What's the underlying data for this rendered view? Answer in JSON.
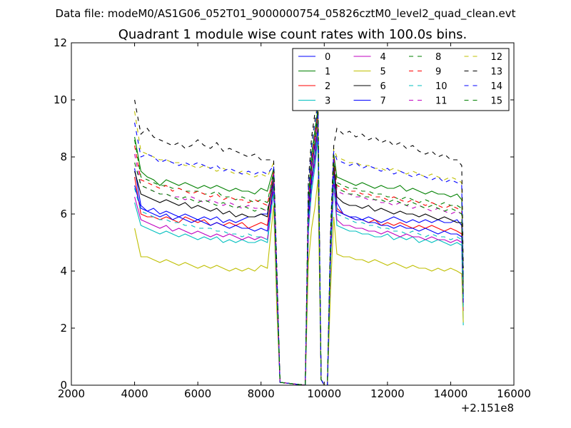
{
  "figure": {
    "suptitle": "Data file: modeM0/AS1G06_052T01_9000000754_05826cztM0_level2_quad_clean.evt",
    "title": "Quadrant 1 module wise count rates with 100.0s bins.",
    "x_offset_label": "+2.151e8"
  },
  "chart_data": {
    "type": "line",
    "title": "Quadrant 1 module wise count rates with 100.0s bins.",
    "xlabel": "",
    "ylabel": "",
    "xlim": [
      2000,
      16000
    ],
    "ylim": [
      0,
      12
    ],
    "x_ticks": [
      2000,
      4000,
      6000,
      8000,
      10000,
      12000,
      14000,
      16000
    ],
    "y_ticks": [
      0,
      2,
      4,
      6,
      8,
      10,
      12
    ],
    "x_tick_labels": [
      "2000",
      "4000",
      "6000",
      "8000",
      "10000",
      "12000",
      "14000",
      "16000"
    ],
    "y_tick_labels": [
      "0",
      "2",
      "4",
      "6",
      "8",
      "10",
      "12"
    ],
    "x_offset": "+2.151e8",
    "grid": false,
    "legend_placement": "top-right",
    "legend_columns": 4,
    "x": [
      4000,
      4200,
      4400,
      4600,
      4800,
      5000,
      5200,
      5400,
      5600,
      5800,
      6000,
      6200,
      6400,
      6600,
      6800,
      7000,
      7200,
      7400,
      7600,
      7800,
      8000,
      8200,
      8400,
      8500,
      8600,
      9400,
      9500,
      9600,
      9700,
      9800,
      9900,
      10000,
      10100,
      10200,
      10300,
      10400,
      10600,
      10800,
      11000,
      11200,
      11400,
      11600,
      11800,
      12000,
      12200,
      12400,
      12600,
      12800,
      13000,
      13200,
      13400,
      13600,
      13800,
      14000,
      14200,
      14350,
      14400
    ],
    "series": [
      {
        "name": "0",
        "color": "#0000ff",
        "dash": "solid",
        "values": [
          7.6,
          6.3,
          6.1,
          6.2,
          6.0,
          6.1,
          6.0,
          5.9,
          6.0,
          5.9,
          5.8,
          5.9,
          5.8,
          5.9,
          5.7,
          5.8,
          5.7,
          5.8,
          5.9,
          5.9,
          6.0,
          6.0,
          7.2,
          3.5,
          0.1,
          0.0,
          6.0,
          7.6,
          8.4,
          9.6,
          0.2,
          0.0,
          0.0,
          4.8,
          7.9,
          6.4,
          6.0,
          5.9,
          5.9,
          5.8,
          5.9,
          5.8,
          5.7,
          5.8,
          5.9,
          5.8,
          5.7,
          5.8,
          5.7,
          5.8,
          5.7,
          5.8,
          5.7,
          5.7,
          5.8,
          5.6,
          3.0
        ]
      },
      {
        "name": "1",
        "color": "#008000",
        "dash": "solid",
        "values": [
          8.7,
          7.5,
          7.3,
          7.2,
          7.0,
          7.2,
          7.1,
          7.0,
          7.1,
          7.0,
          6.9,
          7.0,
          6.9,
          7.0,
          6.9,
          6.8,
          6.9,
          6.8,
          6.8,
          6.7,
          6.9,
          6.8,
          7.6,
          3.8,
          0.1,
          0.0,
          6.6,
          8.1,
          8.9,
          9.7,
          0.2,
          0.0,
          0.0,
          5.0,
          8.1,
          7.3,
          7.2,
          7.1,
          7.0,
          7.1,
          7.0,
          6.9,
          7.0,
          6.9,
          6.9,
          7.0,
          6.8,
          6.9,
          6.8,
          6.7,
          6.8,
          6.7,
          6.7,
          6.6,
          6.7,
          6.5,
          3.6
        ]
      },
      {
        "name": "2",
        "color": "#ff0000",
        "dash": "solid",
        "values": [
          7.3,
          6.0,
          5.9,
          5.9,
          5.8,
          5.9,
          5.8,
          5.7,
          5.9,
          5.8,
          5.7,
          5.8,
          5.6,
          5.7,
          5.6,
          5.7,
          5.6,
          5.7,
          5.5,
          5.6,
          5.7,
          5.6,
          7.1,
          3.4,
          0.1,
          0.0,
          5.9,
          7.3,
          8.1,
          9.1,
          0.2,
          0.0,
          0.0,
          4.6,
          7.6,
          6.2,
          6.0,
          5.9,
          5.8,
          5.8,
          5.7,
          5.8,
          5.6,
          5.7,
          5.6,
          5.7,
          5.6,
          5.5,
          5.6,
          5.5,
          5.6,
          5.5,
          5.4,
          5.5,
          5.4,
          5.3,
          2.9
        ]
      },
      {
        "name": "3",
        "color": "#00bfbf",
        "dash": "solid",
        "values": [
          6.4,
          5.6,
          5.5,
          5.4,
          5.3,
          5.4,
          5.3,
          5.2,
          5.3,
          5.2,
          5.1,
          5.2,
          5.1,
          5.2,
          5.0,
          5.1,
          5.0,
          5.1,
          5.0,
          5.0,
          5.1,
          5.0,
          6.8,
          3.1,
          0.1,
          0.0,
          5.4,
          6.8,
          7.6,
          8.6,
          0.2,
          0.0,
          0.0,
          4.2,
          7.1,
          5.6,
          5.5,
          5.4,
          5.4,
          5.3,
          5.3,
          5.2,
          5.2,
          5.3,
          5.1,
          5.2,
          5.1,
          5.2,
          5.0,
          5.1,
          5.0,
          5.1,
          5.0,
          4.9,
          5.0,
          4.9,
          2.1
        ]
      },
      {
        "name": "4",
        "color": "#bf00bf",
        "dash": "solid",
        "values": [
          6.6,
          5.8,
          5.7,
          5.6,
          5.5,
          5.6,
          5.4,
          5.5,
          5.4,
          5.3,
          5.4,
          5.3,
          5.2,
          5.3,
          5.2,
          5.3,
          5.2,
          5.1,
          5.2,
          5.1,
          5.2,
          5.1,
          6.9,
          3.2,
          0.1,
          0.0,
          5.5,
          7.0,
          7.8,
          8.8,
          0.2,
          0.0,
          0.0,
          4.3,
          7.2,
          5.8,
          5.6,
          5.6,
          5.5,
          5.5,
          5.4,
          5.4,
          5.3,
          5.4,
          5.3,
          5.2,
          5.3,
          5.2,
          5.2,
          5.1,
          5.2,
          5.1,
          5.1,
          5.0,
          5.1,
          5.0,
          2.6
        ]
      },
      {
        "name": "5",
        "color": "#bfbf00",
        "dash": "solid",
        "values": [
          5.5,
          4.5,
          4.5,
          4.4,
          4.3,
          4.4,
          4.3,
          4.2,
          4.3,
          4.2,
          4.1,
          4.2,
          4.1,
          4.2,
          4.1,
          4.0,
          4.1,
          4.0,
          4.1,
          4.0,
          4.2,
          4.1,
          6.3,
          2.6,
          0.1,
          0.0,
          4.3,
          5.5,
          6.2,
          7.2,
          0.2,
          0.0,
          0.0,
          3.3,
          5.9,
          4.6,
          4.5,
          4.5,
          4.4,
          4.4,
          4.3,
          4.4,
          4.3,
          4.2,
          4.3,
          4.2,
          4.1,
          4.2,
          4.1,
          4.1,
          4.0,
          4.1,
          4.0,
          4.1,
          4.0,
          3.9,
          2.2
        ]
      },
      {
        "name": "6",
        "color": "#000000",
        "dash": "solid",
        "values": [
          7.5,
          6.7,
          6.6,
          6.5,
          6.4,
          6.5,
          6.4,
          6.3,
          6.4,
          6.2,
          6.3,
          6.2,
          6.1,
          6.2,
          6.0,
          6.1,
          5.9,
          6.0,
          5.9,
          5.9,
          6.0,
          5.9,
          7.4,
          3.6,
          0.1,
          0.0,
          6.2,
          7.7,
          8.5,
          9.4,
          0.2,
          0.0,
          0.0,
          4.9,
          7.8,
          6.6,
          6.4,
          6.3,
          6.3,
          6.2,
          6.3,
          6.1,
          6.2,
          6.1,
          6.0,
          6.1,
          6.0,
          6.0,
          5.9,
          6.0,
          5.9,
          5.8,
          5.9,
          5.8,
          5.7,
          5.7,
          3.1
        ]
      },
      {
        "name": "7",
        "color": "#0000ff",
        "dash": "solid",
        "values": [
          7.0,
          6.2,
          6.1,
          6.0,
          5.9,
          6.0,
          5.8,
          5.9,
          5.8,
          5.7,
          5.8,
          5.7,
          5.6,
          5.7,
          5.6,
          5.5,
          5.6,
          5.5,
          5.5,
          5.4,
          5.5,
          5.4,
          7.0,
          3.3,
          0.1,
          0.0,
          5.8,
          7.2,
          8.0,
          9.0,
          0.2,
          0.0,
          0.0,
          4.5,
          7.4,
          6.1,
          6.0,
          5.9,
          5.8,
          5.8,
          5.7,
          5.7,
          5.6,
          5.6,
          5.5,
          5.6,
          5.5,
          5.5,
          5.4,
          5.5,
          5.4,
          5.3,
          5.4,
          5.3,
          5.3,
          5.2,
          2.8
        ]
      },
      {
        "name": "8",
        "color": "#008000",
        "dash": "dashed",
        "values": [
          8.6,
          7.3,
          7.2,
          7.1,
          7.0,
          7.0,
          6.9,
          6.9,
          6.8,
          6.8,
          6.8,
          6.7,
          6.7,
          6.8,
          6.6,
          6.6,
          6.5,
          6.6,
          6.5,
          6.4,
          6.5,
          6.4,
          7.5,
          3.7,
          0.1,
          0.0,
          6.5,
          8.0,
          8.8,
          9.6,
          0.2,
          0.0,
          0.0,
          5.0,
          8.0,
          7.1,
          7.0,
          6.9,
          6.9,
          6.8,
          6.8,
          6.7,
          6.7,
          6.6,
          6.6,
          6.5,
          6.6,
          6.5,
          6.4,
          6.5,
          6.4,
          6.3,
          6.4,
          6.3,
          6.3,
          6.2,
          3.4
        ]
      },
      {
        "name": "9",
        "color": "#ff0000",
        "dash": "dashed",
        "values": [
          8.4,
          7.2,
          7.1,
          7.0,
          6.9,
          7.0,
          6.8,
          6.9,
          6.8,
          6.7,
          6.8,
          6.7,
          6.6,
          6.7,
          6.5,
          6.6,
          6.5,
          6.5,
          6.4,
          6.5,
          6.4,
          6.3,
          7.5,
          3.7,
          0.1,
          0.0,
          6.4,
          7.9,
          8.7,
          9.5,
          0.2,
          0.0,
          0.0,
          4.9,
          8.0,
          7.0,
          6.9,
          6.8,
          6.8,
          6.7,
          6.7,
          6.6,
          6.6,
          6.5,
          6.6,
          6.5,
          6.4,
          6.5,
          6.4,
          6.3,
          6.4,
          6.3,
          6.2,
          6.3,
          6.2,
          6.1,
          3.3
        ]
      },
      {
        "name": "10",
        "color": "#00bfbf",
        "dash": "dashed",
        "values": [
          6.9,
          6.1,
          6.0,
          5.9,
          5.8,
          5.8,
          5.7,
          5.7,
          5.6,
          5.6,
          5.5,
          5.5,
          5.5,
          5.4,
          5.4,
          5.3,
          5.3,
          5.2,
          5.3,
          5.2,
          5.2,
          5.1,
          6.9,
          3.2,
          0.1,
          0.0,
          5.6,
          7.0,
          7.9,
          8.8,
          0.2,
          0.0,
          0.0,
          4.4,
          7.3,
          6.0,
          5.9,
          5.8,
          5.7,
          5.7,
          5.6,
          5.6,
          5.5,
          5.5,
          5.4,
          5.4,
          5.3,
          5.4,
          5.3,
          5.2,
          5.3,
          5.2,
          5.2,
          5.1,
          5.2,
          5.1,
          2.7
        ]
      },
      {
        "name": "11",
        "color": "#bf00bf",
        "dash": "dashed",
        "values": [
          8.1,
          7.0,
          6.9,
          6.8,
          6.7,
          6.7,
          6.6,
          6.6,
          6.5,
          6.6,
          6.5,
          6.4,
          6.5,
          6.4,
          6.3,
          6.4,
          6.3,
          6.2,
          6.3,
          6.2,
          6.2,
          6.1,
          7.4,
          3.6,
          0.1,
          0.0,
          6.3,
          7.8,
          8.6,
          9.4,
          0.2,
          0.0,
          0.0,
          4.8,
          7.9,
          6.8,
          6.7,
          6.7,
          6.6,
          6.6,
          6.5,
          6.5,
          6.4,
          6.4,
          6.3,
          6.4,
          6.3,
          6.2,
          6.3,
          6.2,
          6.1,
          6.2,
          6.1,
          6.0,
          6.1,
          6.0,
          3.2
        ]
      },
      {
        "name": "12",
        "color": "#bfbf00",
        "dash": "dashed",
        "values": [
          9.6,
          8.2,
          8.1,
          8.0,
          7.9,
          7.9,
          7.8,
          7.8,
          7.7,
          7.7,
          7.6,
          7.7,
          7.6,
          7.5,
          7.6,
          7.5,
          7.4,
          7.5,
          7.4,
          7.3,
          7.4,
          7.3,
          7.8,
          4.0,
          0.1,
          0.0,
          7.0,
          8.5,
          9.3,
          9.9,
          0.2,
          0.0,
          0.0,
          5.3,
          8.3,
          8.0,
          7.9,
          7.8,
          7.8,
          7.7,
          7.7,
          7.6,
          7.6,
          7.5,
          7.6,
          7.5,
          7.4,
          7.5,
          7.4,
          7.3,
          7.4,
          7.3,
          7.2,
          7.3,
          7.2,
          7.1,
          3.9
        ]
      },
      {
        "name": "13",
        "color": "#000000",
        "dash": "dashed",
        "values": [
          10.0,
          8.8,
          9.0,
          8.7,
          8.6,
          8.5,
          8.4,
          8.5,
          8.3,
          8.4,
          8.6,
          8.4,
          8.3,
          8.5,
          8.2,
          8.3,
          8.2,
          8.1,
          8.0,
          8.1,
          7.9,
          7.9,
          7.9,
          4.1,
          0.1,
          0.0,
          7.2,
          8.7,
          9.5,
          10.2,
          0.2,
          0.0,
          0.0,
          5.4,
          8.4,
          9.0,
          8.8,
          8.9,
          8.7,
          8.8,
          8.6,
          8.7,
          8.5,
          8.6,
          8.4,
          8.5,
          8.3,
          8.4,
          8.2,
          8.1,
          8.2,
          8.0,
          8.1,
          7.9,
          7.9,
          7.7,
          4.1
        ]
      },
      {
        "name": "14",
        "color": "#0000ff",
        "dash": "dashed",
        "values": [
          9.2,
          8.0,
          8.1,
          8.0,
          7.8,
          7.9,
          7.8,
          7.7,
          7.8,
          7.7,
          7.8,
          7.7,
          7.6,
          7.7,
          7.5,
          7.6,
          7.5,
          7.4,
          7.5,
          7.4,
          7.5,
          7.4,
          7.7,
          3.9,
          0.1,
          0.0,
          6.9,
          8.4,
          9.2,
          9.8,
          0.2,
          0.0,
          0.0,
          5.2,
          8.2,
          7.9,
          7.8,
          7.7,
          7.8,
          7.6,
          7.7,
          7.6,
          7.5,
          7.6,
          7.4,
          7.5,
          7.4,
          7.3,
          7.4,
          7.3,
          7.2,
          7.3,
          7.1,
          7.2,
          7.1,
          7.0,
          3.8
        ]
      },
      {
        "name": "15",
        "color": "#008000",
        "dash": "dashed",
        "values": [
          7.8,
          7.0,
          6.9,
          6.8,
          6.7,
          6.7,
          6.6,
          6.5,
          6.6,
          6.5,
          6.4,
          6.5,
          6.4,
          6.3,
          6.4,
          6.3,
          6.2,
          6.3,
          6.2,
          6.1,
          6.2,
          6.1,
          7.3,
          3.6,
          0.1,
          0.0,
          6.2,
          7.7,
          8.5,
          9.3,
          0.2,
          0.0,
          0.0,
          4.8,
          7.8,
          6.9,
          6.8,
          6.7,
          6.7,
          6.6,
          6.6,
          6.5,
          6.5,
          6.4,
          6.5,
          6.4,
          6.3,
          6.4,
          6.3,
          6.2,
          6.3,
          6.2,
          6.1,
          6.2,
          6.1,
          6.0,
          3.2
        ]
      }
    ]
  }
}
